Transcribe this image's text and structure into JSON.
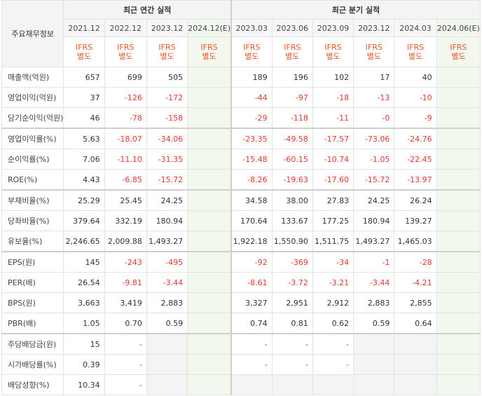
{
  "header": {
    "corner_label": "주요재무정보",
    "annual_title": "최근 연간 실적",
    "quarter_title": "최근 분기 실적",
    "annual_dates": [
      "2021.12",
      "2022.12",
      "2023.12",
      "2024.12(E)"
    ],
    "quarter_dates": [
      "2023.03",
      "2023.06",
      "2023.09",
      "2023.12",
      "2024.03",
      "2024.06(E)"
    ],
    "ifrs_line1": "IFRS",
    "ifrs_line2": "별도"
  },
  "rows": [
    {
      "label": "매출액(억원)",
      "annual": [
        "657",
        "699",
        "505",
        ""
      ],
      "quarter": [
        "189",
        "196",
        "102",
        "17",
        "40",
        ""
      ]
    },
    {
      "label": "영업이익(억원)",
      "annual": [
        "37",
        "-126",
        "-172",
        ""
      ],
      "quarter": [
        "-44",
        "-97",
        "-18",
        "-13",
        "-10",
        ""
      ]
    },
    {
      "label": "당기순이익(억원)",
      "annual": [
        "46",
        "-78",
        "-158",
        ""
      ],
      "quarter": [
        "-29",
        "-118",
        "-11",
        "-0",
        "-9",
        ""
      ]
    },
    {
      "label": "영업이익률(%)",
      "annual": [
        "5.63",
        "-18.07",
        "-34.06",
        ""
      ],
      "quarter": [
        "-23.35",
        "-49.58",
        "-17.57",
        "-73.06",
        "-24.76",
        ""
      ]
    },
    {
      "label": "순이익률(%)",
      "annual": [
        "7.06",
        "-11.10",
        "-31.35",
        ""
      ],
      "quarter": [
        "-15.48",
        "-60.15",
        "-10.74",
        "-1.05",
        "-22.45",
        ""
      ]
    },
    {
      "label": "ROE(%)",
      "annual": [
        "4.43",
        "-6.85",
        "-15.72",
        ""
      ],
      "quarter": [
        "-8.26",
        "-19.63",
        "-17.60",
        "-15.72",
        "-13.97",
        ""
      ]
    },
    {
      "label": "부채비율(%)",
      "annual": [
        "25.29",
        "25.45",
        "24.25",
        ""
      ],
      "quarter": [
        "34.58",
        "38.00",
        "27.83",
        "24.25",
        "26.24",
        ""
      ]
    },
    {
      "label": "당좌비율(%)",
      "annual": [
        "379.64",
        "332.19",
        "180.94",
        ""
      ],
      "quarter": [
        "170.64",
        "133.67",
        "177.25",
        "180.94",
        "139.27",
        ""
      ]
    },
    {
      "label": "유보율(%)",
      "annual": [
        "2,246.65",
        "2,009.88",
        "1,493.27",
        ""
      ],
      "quarter": [
        "1,922.18",
        "1,550.90",
        "1,511.75",
        "1,493.27",
        "1,465.03",
        ""
      ]
    },
    {
      "label": "EPS(원)",
      "annual": [
        "145",
        "-243",
        "-495",
        ""
      ],
      "quarter": [
        "-92",
        "-369",
        "-34",
        "-1",
        "-28",
        ""
      ]
    },
    {
      "label": "PER(배)",
      "annual": [
        "26.54",
        "-9.81",
        "-3.44",
        ""
      ],
      "quarter": [
        "-8.61",
        "-3.72",
        "-3.21",
        "-3.44",
        "-4.21",
        ""
      ]
    },
    {
      "label": "BPS(원)",
      "annual": [
        "3,663",
        "3,419",
        "2,883",
        ""
      ],
      "quarter": [
        "3,327",
        "2,951",
        "2,912",
        "2,883",
        "2,855",
        ""
      ]
    },
    {
      "label": "PBR(배)",
      "annual": [
        "1.05",
        "0.70",
        "0.59",
        ""
      ],
      "quarter": [
        "0.74",
        "0.81",
        "0.62",
        "0.59",
        "0.64",
        ""
      ]
    },
    {
      "label": "주당배당금(원)",
      "annual": [
        "15",
        "-",
        "",
        ""
      ],
      "quarter": [
        "-",
        "-",
        "-",
        "",
        "",
        ""
      ]
    },
    {
      "label": "시가배당률(%)",
      "annual": [
        "0.39",
        "-",
        "",
        ""
      ],
      "quarter": [
        "-",
        "-",
        "-",
        "",
        "",
        ""
      ]
    },
    {
      "label": "배당성향(%)",
      "annual": [
        "10.34",
        "-",
        "",
        ""
      ],
      "quarter": [
        "",
        "",
        "",
        "",
        "",
        ""
      ]
    }
  ],
  "colors": {
    "negative": "#e03a2e",
    "ifrs": "#e8582a",
    "estimate_bg": "#f2f8ee"
  }
}
